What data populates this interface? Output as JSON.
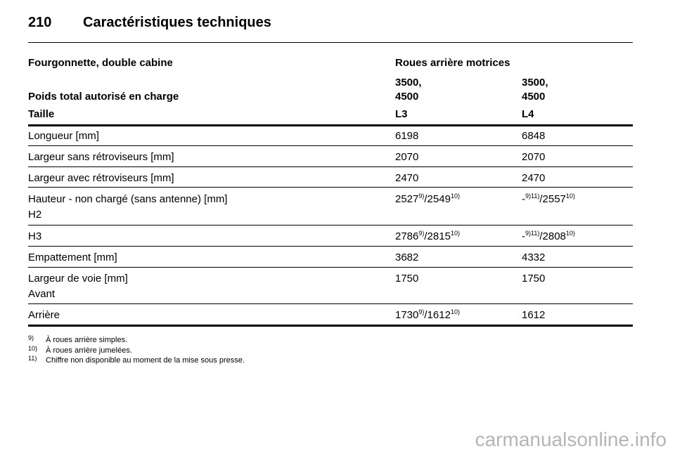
{
  "header": {
    "page_number": "210",
    "title": "Caractéristiques techniques"
  },
  "table": {
    "vehicle": "Fourgonnette, double cabine",
    "drive": "Roues arrière motrices",
    "weight_label": "Poids total autorisé en charge",
    "weights": [
      [
        "3500,",
        "4500"
      ],
      [
        "3500,",
        "4500"
      ]
    ],
    "size_label": "Taille",
    "sizes": [
      "L3",
      "L4"
    ],
    "rows": [
      {
        "label": "Longueur [mm]",
        "cells": [
          [
            "6198"
          ],
          [
            "6848"
          ]
        ]
      },
      {
        "label": "Largeur sans rétroviseurs [mm]",
        "cells": [
          [
            "2070"
          ],
          [
            "2070"
          ]
        ]
      },
      {
        "label": "Largeur avec rétroviseurs [mm]",
        "cells": [
          [
            "2470"
          ],
          [
            "2470"
          ]
        ]
      },
      {
        "label": "Hauteur - non chargé (sans antenne) [mm]",
        "sublabel": "H2",
        "cells": [
          [
            "2527",
            {
              "sup": "9)"
            },
            "/2549",
            {
              "sup": "10)"
            }
          ],
          [
            "-",
            {
              "sup": "9)11)"
            },
            "/2557",
            {
              "sup": "10)"
            }
          ]
        ]
      },
      {
        "label": "H3",
        "cells": [
          [
            "2786",
            {
              "sup": "9)"
            },
            "/2815",
            {
              "sup": "10)"
            }
          ],
          [
            "-",
            {
              "sup": "9)11)"
            },
            "/2808",
            {
              "sup": "10)"
            }
          ]
        ]
      },
      {
        "label": "Empattement [mm]",
        "cells": [
          [
            "3682"
          ],
          [
            "4332"
          ]
        ]
      },
      {
        "label": "Largeur de voie [mm]",
        "sublabel": "Avant",
        "cells": [
          [
            "1750"
          ],
          [
            "1750"
          ]
        ]
      },
      {
        "label": "Arrière",
        "cells": [
          [
            "1730",
            {
              "sup": "9)"
            },
            "/1612",
            {
              "sup": "10)"
            }
          ],
          [
            "1612"
          ]
        ]
      }
    ]
  },
  "footnotes": [
    {
      "mark": "9)",
      "text": "À roues arrière simples."
    },
    {
      "mark": "10)",
      "text": "À roues arrière jumelées."
    },
    {
      "mark": "11)",
      "text": "Chiffre non disponible au moment de la mise sous presse."
    }
  ],
  "watermark": "carmanualsonline.info"
}
